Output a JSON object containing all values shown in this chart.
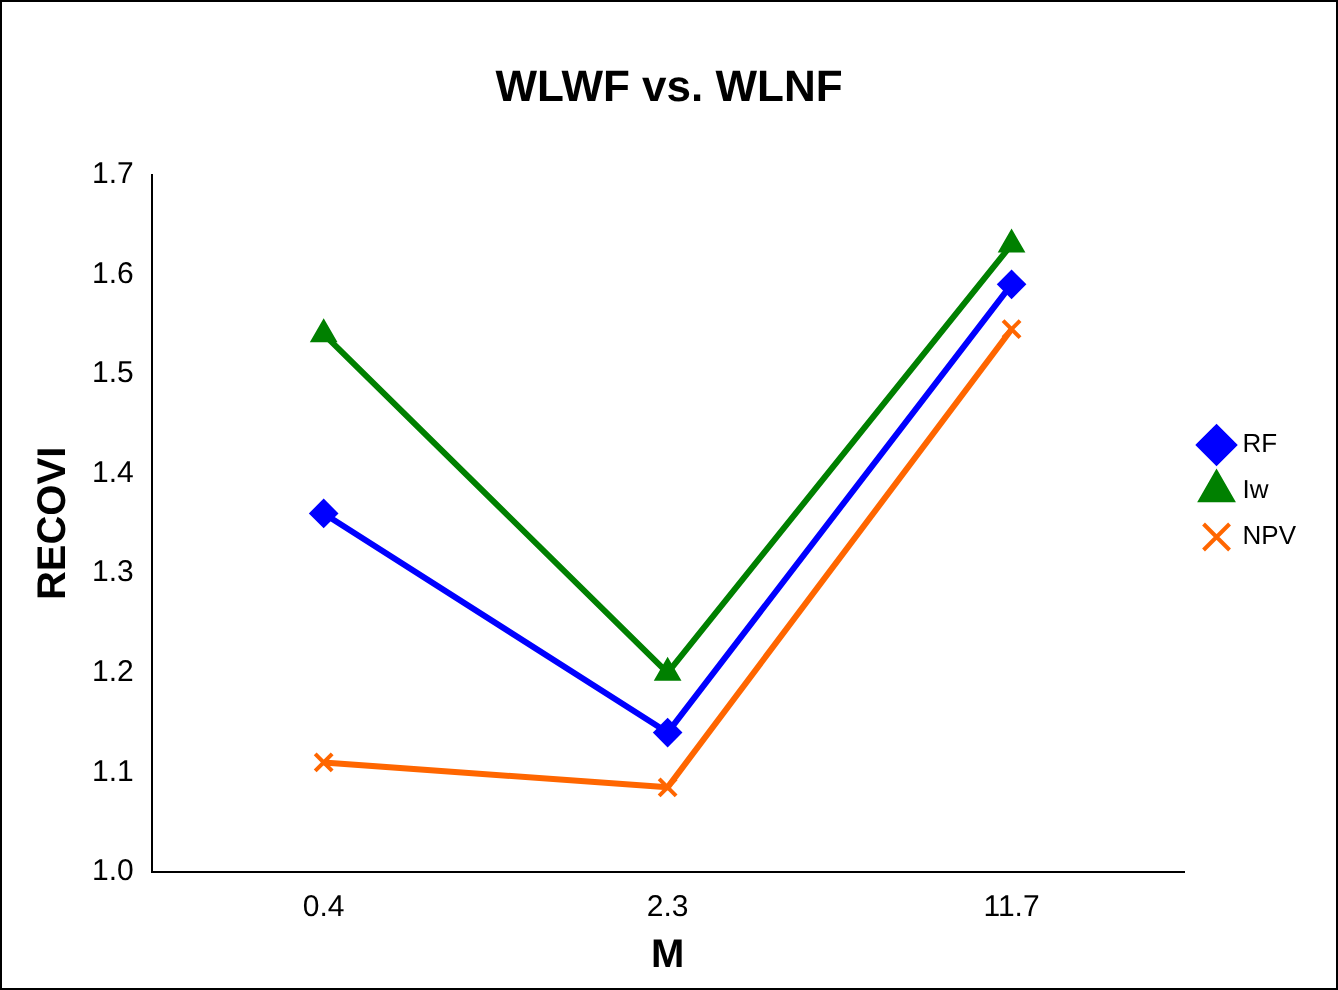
{
  "chart_data": {
    "type": "line",
    "title": "WLWF vs. WLNF",
    "xlabel": "M",
    "ylabel": "RECOVI",
    "categories": [
      "0.4",
      "2.3",
      "11.7"
    ],
    "series": [
      {
        "name": "RF",
        "color": "#0000ff",
        "marker": "diamond",
        "values": [
          1.36,
          1.14,
          1.59
        ]
      },
      {
        "name": "Iw",
        "color": "#008000",
        "marker": "triangle",
        "values": [
          1.54,
          1.2,
          1.63
        ]
      },
      {
        "name": "NPV",
        "color": "#ff6600",
        "marker": "cross",
        "values": [
          1.11,
          1.085,
          1.545
        ]
      }
    ],
    "ylim": [
      1.0,
      1.7
    ],
    "yticks": [
      {
        "value": 1.0,
        "label": "1.0"
      },
      {
        "value": 1.1,
        "label": "1.1"
      },
      {
        "value": 1.2,
        "label": "1.2"
      },
      {
        "value": 1.3,
        "label": "1.3"
      },
      {
        "value": 1.4,
        "label": "1.4"
      },
      {
        "value": 1.5,
        "label": "1.5"
      },
      {
        "value": 1.6,
        "label": "1.6"
      },
      {
        "value": 1.7,
        "label": "1.7"
      }
    ],
    "grid": false,
    "legend": "right",
    "line_style": "solid"
  }
}
